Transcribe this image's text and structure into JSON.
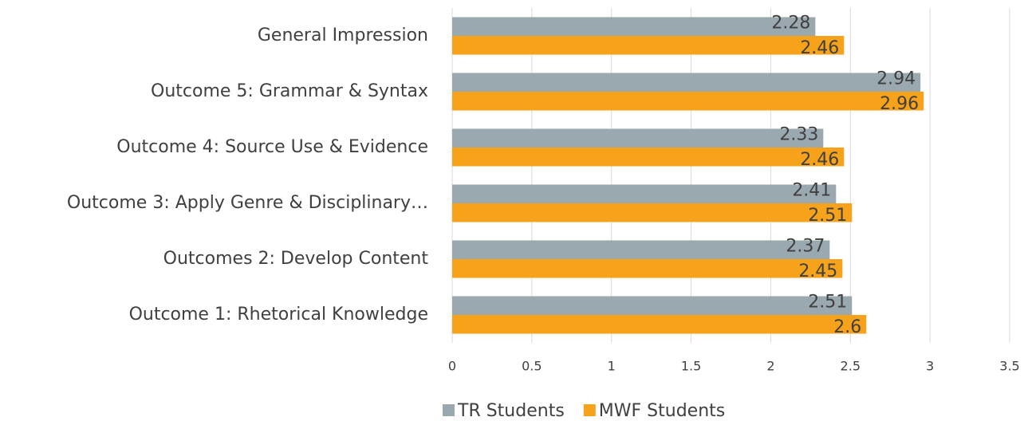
{
  "chart_data": {
    "type": "barh",
    "categories": [
      "General Impression",
      "Outcome 5: Grammar & Syntax",
      "Outcome 4: Source Use & Evidence",
      "Outcome 3: Apply Genre & Disciplinary…",
      "Outcomes 2: Develop Content",
      "Outcome 1: Rhetorical Knowledge"
    ],
    "series": [
      {
        "name": "TR Students",
        "color": "#9aa9b0",
        "values": [
          2.28,
          2.94,
          2.33,
          2.41,
          2.37,
          2.51
        ]
      },
      {
        "name": "MWF Students",
        "color": "#f7a21b",
        "values": [
          2.46,
          2.96,
          2.46,
          2.51,
          2.45,
          2.6
        ]
      }
    ],
    "xlim": [
      0,
      3.5
    ],
    "xticks": [
      0,
      0.5,
      1,
      1.5,
      2,
      2.5,
      3,
      3.5
    ],
    "grid": true,
    "legend": "bottom"
  }
}
